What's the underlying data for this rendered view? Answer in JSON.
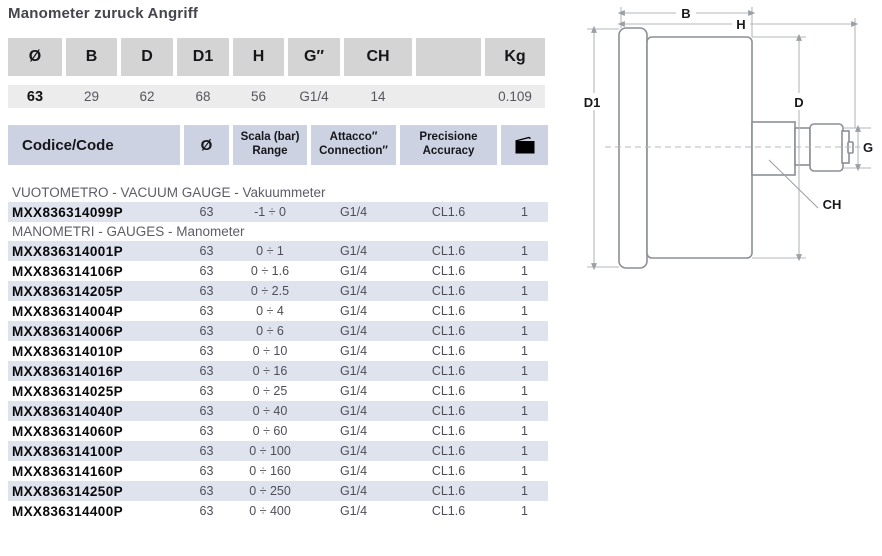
{
  "title": "Manometer zuruck Angriff",
  "dimensions_table": {
    "headers": [
      "Ø",
      "B",
      "D",
      "D1",
      "H",
      "G″",
      "CH",
      "",
      "Kg"
    ],
    "values": [
      "63",
      "29",
      "62",
      "68",
      "56",
      "G1/4",
      "14",
      "",
      "0.109"
    ]
  },
  "product_table": {
    "headers": {
      "code": "Codice/Code",
      "diameter": "Ø",
      "range_line1": "Scala (bar)",
      "range_line2": "Range",
      "connection_line1": "Attacco″",
      "connection_line2": "Connection″",
      "accuracy_line1": "Precisione",
      "accuracy_line2": "Accuracy",
      "package_icon": "package-icon"
    },
    "sections": [
      {
        "label": "VUOTOMETRO - VACUUM GAUGE - Vakuummeter",
        "rows": [
          [
            "MXX836314099P",
            "63",
            "-1 ÷ 0",
            "G1/4",
            "CL1.6",
            "1"
          ]
        ]
      },
      {
        "label": "MANOMETRI - GAUGES - Manometer",
        "rows": [
          [
            "MXX836314001P",
            "63",
            "0 ÷ 1",
            "G1/4",
            "CL1.6",
            "1"
          ],
          [
            "MXX836314106P",
            "63",
            "0 ÷ 1.6",
            "G1/4",
            "CL1.6",
            "1"
          ],
          [
            "MXX836314205P",
            "63",
            "0 ÷ 2.5",
            "G1/4",
            "CL1.6",
            "1"
          ],
          [
            "MXX836314004P",
            "63",
            "0 ÷ 4",
            "G1/4",
            "CL1.6",
            "1"
          ],
          [
            "MXX836314006P",
            "63",
            "0 ÷ 6",
            "G1/4",
            "CL1.6",
            "1"
          ],
          [
            "MXX836314010P",
            "63",
            "0 ÷ 10",
            "G1/4",
            "CL1.6",
            "1"
          ],
          [
            "MXX836314016P",
            "63",
            "0 ÷ 16",
            "G1/4",
            "CL1.6",
            "1"
          ],
          [
            "MXX836314025P",
            "63",
            "0 ÷ 25",
            "G1/4",
            "CL1.6",
            "1"
          ],
          [
            "MXX836314040P",
            "63",
            "0 ÷ 40",
            "G1/4",
            "CL1.6",
            "1"
          ],
          [
            "MXX836314060P",
            "63",
            "0 ÷ 60",
            "G1/4",
            "CL1.6",
            "1"
          ],
          [
            "MXX836314100P",
            "63",
            "0 ÷ 100",
            "G1/4",
            "CL1.6",
            "1"
          ],
          [
            "MXX836314160P",
            "63",
            "0 ÷ 160",
            "G1/4",
            "CL1.6",
            "1"
          ],
          [
            "MXX836314250P",
            "63",
            "0 ÷ 250",
            "G1/4",
            "CL1.6",
            "1"
          ],
          [
            "MXX836314400P",
            "63",
            "0 ÷ 400",
            "G1/4",
            "CL1.6",
            "1"
          ]
        ]
      }
    ]
  },
  "diagram": {
    "labels": {
      "b": "B",
      "h": "H",
      "d1": "D1",
      "d": "D",
      "g": "G",
      "ch": "CH"
    }
  },
  "colors": {
    "table1_header_bg": "#d4d4d4",
    "table1_value_band_bg": "#ececec",
    "table2_header_bg": "#ccd2e1",
    "row_alt_bg": "#dfe3ee",
    "code_text": "#0a0a0d",
    "muted_text": "#55555e"
  }
}
